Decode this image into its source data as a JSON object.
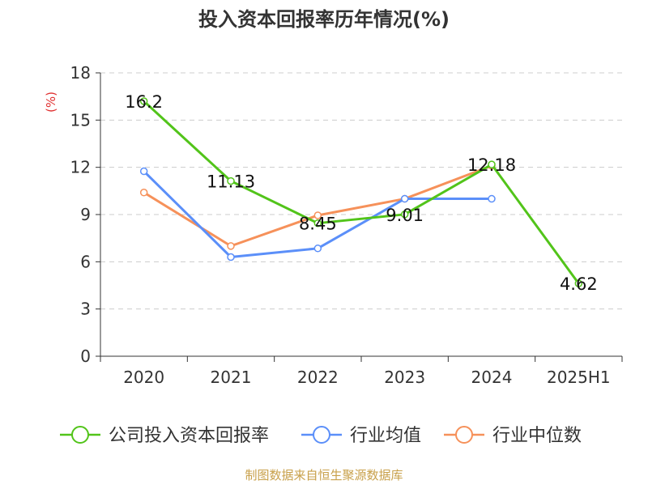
{
  "chart_data": {
    "type": "line",
    "title": "投入资本回报率历年情况(%)",
    "ylabel": "(%)",
    "xlabel": "",
    "categories": [
      "2020",
      "2021",
      "2022",
      "2023",
      "2024",
      "2025H1"
    ],
    "ylim": [
      0,
      18
    ],
    "yticks": [
      0,
      3,
      6,
      9,
      12,
      15,
      18
    ],
    "grid": true,
    "legend_position": "bottom",
    "series": [
      {
        "name": "公司投入资本回报率",
        "color": "#52c41a",
        "values": [
          16.2,
          11.13,
          8.45,
          9.01,
          12.18,
          4.62
        ],
        "labels": [
          "16.2",
          "11.13",
          "8.45",
          "9.01",
          "12.18",
          "4.62"
        ]
      },
      {
        "name": "行业均值",
        "color": "#5b8ff9",
        "values": [
          11.75,
          6.3,
          6.85,
          10.0,
          10.0,
          null
        ]
      },
      {
        "name": "行业中位数",
        "color": "#f6915a",
        "values": [
          10.4,
          7.0,
          8.95,
          10.0,
          12.1,
          null
        ]
      }
    ],
    "source": "制图数据来自恒生聚源数据库"
  },
  "colors": {
    "title": "#333333",
    "axis": "#333333",
    "tick_text": "#333333",
    "ylabel": "#e03030",
    "grid": "#cccccc",
    "source": "#c8a04a"
  }
}
